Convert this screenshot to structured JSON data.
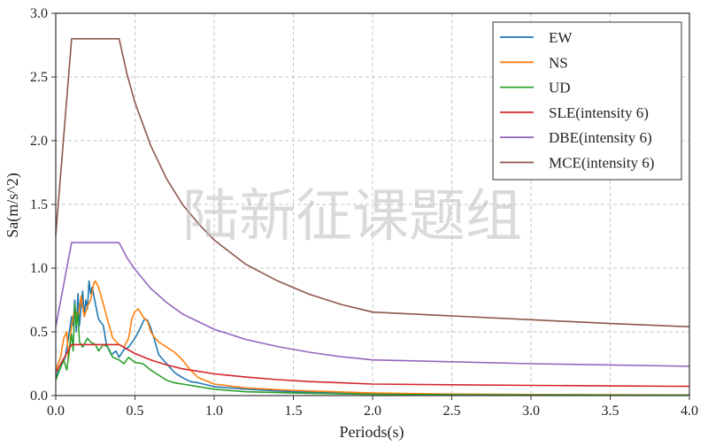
{
  "watermark": "陆新征课题组",
  "chart_data": {
    "type": "line",
    "xlabel": "Periods(s)",
    "ylabel": "Sa(m/s^2)",
    "xlim": [
      0,
      4.0
    ],
    "ylim": [
      0,
      3.0
    ],
    "xticks": [
      "0.0",
      "0.5",
      "1.0",
      "1.5",
      "2.0",
      "2.5",
      "3.0",
      "3.5",
      "4.0"
    ],
    "yticks": [
      "0.0",
      "0.5",
      "1.0",
      "1.5",
      "2.0",
      "2.5",
      "3.0"
    ],
    "grid": true,
    "legend_position": "top-right",
    "series": [
      {
        "name": "EW",
        "color": "#1f77b4",
        "points": [
          [
            0,
            0.15
          ],
          [
            0.03,
            0.22
          ],
          [
            0.06,
            0.3
          ],
          [
            0.08,
            0.45
          ],
          [
            0.1,
            0.62
          ],
          [
            0.11,
            0.55
          ],
          [
            0.12,
            0.75
          ],
          [
            0.13,
            0.5
          ],
          [
            0.14,
            0.8
          ],
          [
            0.15,
            0.55
          ],
          [
            0.16,
            0.7
          ],
          [
            0.17,
            0.82
          ],
          [
            0.18,
            0.62
          ],
          [
            0.19,
            0.75
          ],
          [
            0.2,
            0.68
          ],
          [
            0.21,
            0.9
          ],
          [
            0.22,
            0.8
          ],
          [
            0.23,
            0.85
          ],
          [
            0.25,
            0.72
          ],
          [
            0.27,
            0.6
          ],
          [
            0.3,
            0.55
          ],
          [
            0.32,
            0.4
          ],
          [
            0.35,
            0.32
          ],
          [
            0.38,
            0.35
          ],
          [
            0.4,
            0.3
          ],
          [
            0.43,
            0.36
          ],
          [
            0.46,
            0.38
          ],
          [
            0.5,
            0.45
          ],
          [
            0.53,
            0.52
          ],
          [
            0.56,
            0.6
          ],
          [
            0.58,
            0.59
          ],
          [
            0.6,
            0.53
          ],
          [
            0.62,
            0.45
          ],
          [
            0.65,
            0.32
          ],
          [
            0.7,
            0.25
          ],
          [
            0.75,
            0.18
          ],
          [
            0.8,
            0.14
          ],
          [
            0.85,
            0.11
          ],
          [
            0.9,
            0.1
          ],
          [
            1.0,
            0.07
          ],
          [
            1.2,
            0.05
          ],
          [
            1.5,
            0.03
          ],
          [
            2.0,
            0.015
          ],
          [
            2.5,
            0.01
          ],
          [
            3.0,
            0.007
          ],
          [
            3.5,
            0.005
          ],
          [
            4.0,
            0.004
          ]
        ]
      },
      {
        "name": "NS",
        "color": "#ff7f0e",
        "points": [
          [
            0,
            0.2
          ],
          [
            0.03,
            0.3
          ],
          [
            0.05,
            0.45
          ],
          [
            0.07,
            0.5
          ],
          [
            0.08,
            0.28
          ],
          [
            0.1,
            0.55
          ],
          [
            0.12,
            0.68
          ],
          [
            0.14,
            0.6
          ],
          [
            0.16,
            0.78
          ],
          [
            0.18,
            0.62
          ],
          [
            0.2,
            0.7
          ],
          [
            0.22,
            0.75
          ],
          [
            0.24,
            0.88
          ],
          [
            0.25,
            0.9
          ],
          [
            0.27,
            0.85
          ],
          [
            0.3,
            0.72
          ],
          [
            0.33,
            0.58
          ],
          [
            0.36,
            0.45
          ],
          [
            0.4,
            0.4
          ],
          [
            0.43,
            0.38
          ],
          [
            0.46,
            0.45
          ],
          [
            0.48,
            0.6
          ],
          [
            0.5,
            0.66
          ],
          [
            0.52,
            0.68
          ],
          [
            0.55,
            0.62
          ],
          [
            0.58,
            0.58
          ],
          [
            0.6,
            0.5
          ],
          [
            0.62,
            0.46
          ],
          [
            0.65,
            0.42
          ],
          [
            0.7,
            0.38
          ],
          [
            0.75,
            0.34
          ],
          [
            0.8,
            0.28
          ],
          [
            0.85,
            0.2
          ],
          [
            0.9,
            0.14
          ],
          [
            1.0,
            0.09
          ],
          [
            1.2,
            0.06
          ],
          [
            1.5,
            0.04
          ],
          [
            2.0,
            0.02
          ],
          [
            2.5,
            0.012
          ],
          [
            3.0,
            0.008
          ],
          [
            3.5,
            0.006
          ],
          [
            4.0,
            0.005
          ]
        ]
      },
      {
        "name": "UD",
        "color": "#2ca02c",
        "points": [
          [
            0,
            0.12
          ],
          [
            0.03,
            0.22
          ],
          [
            0.05,
            0.28
          ],
          [
            0.07,
            0.2
          ],
          [
            0.09,
            0.4
          ],
          [
            0.1,
            0.48
          ],
          [
            0.11,
            0.35
          ],
          [
            0.12,
            0.72
          ],
          [
            0.13,
            0.55
          ],
          [
            0.14,
            0.65
          ],
          [
            0.15,
            0.42
          ],
          [
            0.17,
            0.38
          ],
          [
            0.2,
            0.45
          ],
          [
            0.22,
            0.42
          ],
          [
            0.25,
            0.4
          ],
          [
            0.27,
            0.35
          ],
          [
            0.3,
            0.4
          ],
          [
            0.33,
            0.38
          ],
          [
            0.36,
            0.3
          ],
          [
            0.4,
            0.28
          ],
          [
            0.43,
            0.25
          ],
          [
            0.46,
            0.3
          ],
          [
            0.5,
            0.26
          ],
          [
            0.55,
            0.25
          ],
          [
            0.6,
            0.2
          ],
          [
            0.65,
            0.16
          ],
          [
            0.7,
            0.12
          ],
          [
            0.75,
            0.1
          ],
          [
            0.8,
            0.09
          ],
          [
            0.9,
            0.07
          ],
          [
            1.0,
            0.05
          ],
          [
            1.2,
            0.03
          ],
          [
            1.5,
            0.02
          ],
          [
            2.0,
            0.01
          ],
          [
            2.5,
            0.007
          ],
          [
            3.0,
            0.005
          ],
          [
            3.5,
            0.004
          ],
          [
            4.0,
            0.003
          ]
        ]
      },
      {
        "name": "SLE(intensity 6)",
        "color": "#d62728",
        "points": [
          [
            0,
            0.18
          ],
          [
            0.1,
            0.4
          ],
          [
            0.4,
            0.4
          ],
          [
            0.5,
            0.33
          ],
          [
            0.6,
            0.28
          ],
          [
            0.7,
            0.24
          ],
          [
            0.8,
            0.21
          ],
          [
            0.9,
            0.19
          ],
          [
            1.0,
            0.17
          ],
          [
            1.2,
            0.145
          ],
          [
            1.4,
            0.125
          ],
          [
            1.6,
            0.11
          ],
          [
            1.8,
            0.1
          ],
          [
            2.0,
            0.09
          ],
          [
            2.5,
            0.085
          ],
          [
            3.0,
            0.08
          ],
          [
            3.5,
            0.076
          ],
          [
            4.0,
            0.072
          ]
        ]
      },
      {
        "name": "DBE(intensity 6)",
        "color": "#9467bd",
        "points": [
          [
            0,
            0.54
          ],
          [
            0.1,
            1.2
          ],
          [
            0.4,
            1.2
          ],
          [
            0.45,
            1.08
          ],
          [
            0.5,
            0.99
          ],
          [
            0.6,
            0.84
          ],
          [
            0.7,
            0.73
          ],
          [
            0.8,
            0.64
          ],
          [
            0.9,
            0.58
          ],
          [
            1.0,
            0.52
          ],
          [
            1.2,
            0.44
          ],
          [
            1.4,
            0.385
          ],
          [
            1.6,
            0.34
          ],
          [
            1.8,
            0.305
          ],
          [
            2.0,
            0.28
          ],
          [
            2.5,
            0.265
          ],
          [
            3.0,
            0.25
          ],
          [
            3.5,
            0.24
          ],
          [
            4.0,
            0.23
          ]
        ]
      },
      {
        "name": "MCE(intensity 6)",
        "color": "#8c564b",
        "points": [
          [
            0,
            1.26
          ],
          [
            0.1,
            2.8
          ],
          [
            0.4,
            2.8
          ],
          [
            0.45,
            2.52
          ],
          [
            0.5,
            2.3
          ],
          [
            0.6,
            1.96
          ],
          [
            0.7,
            1.7
          ],
          [
            0.8,
            1.5
          ],
          [
            0.9,
            1.35
          ],
          [
            1.0,
            1.22
          ],
          [
            1.2,
            1.03
          ],
          [
            1.4,
            0.9
          ],
          [
            1.6,
            0.795
          ],
          [
            1.8,
            0.715
          ],
          [
            2.0,
            0.655
          ],
          [
            2.5,
            0.625
          ],
          [
            3.0,
            0.595
          ],
          [
            3.5,
            0.565
          ],
          [
            4.0,
            0.54
          ]
        ]
      }
    ]
  }
}
